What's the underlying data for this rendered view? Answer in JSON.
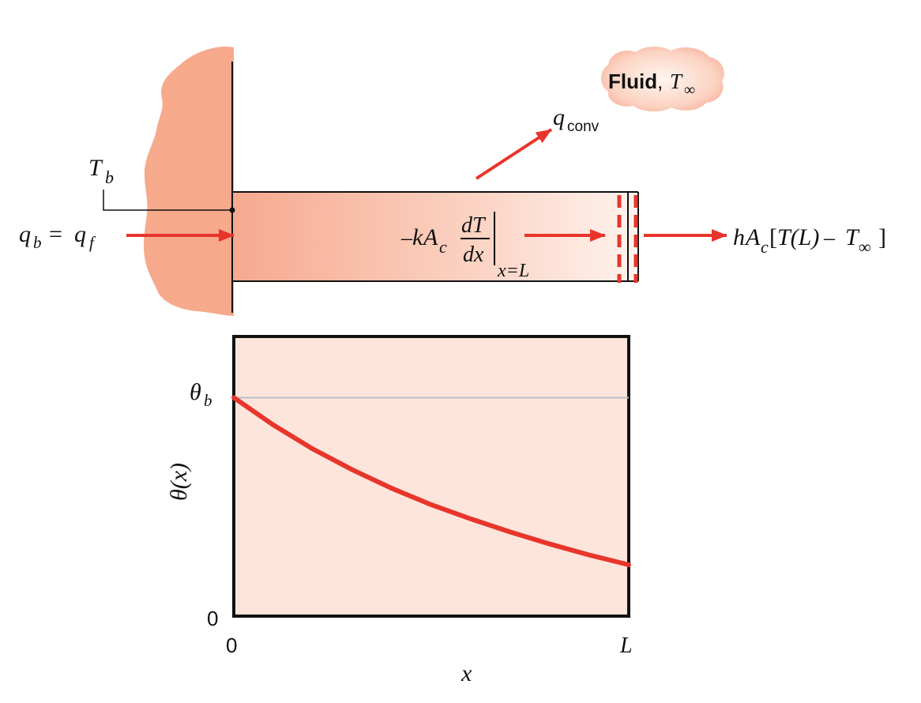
{
  "labels": {
    "fluid_word": "Fluid",
    "fluid_sep": ",",
    "T": "T",
    "inf": "∞",
    "q": "q",
    "conv": "conv",
    "b": "b",
    "f": "f",
    "eq": "=",
    "minus": "–",
    "k": "k",
    "A": "A",
    "c": "c",
    "h": "h",
    "dT": "dT",
    "dx": "dx",
    "x_eq_L": "x=L",
    "bracket_open": "[",
    "bracket_close": "]",
    "TL": "T(L)"
  },
  "plot": {
    "y_axis_label": "θ(x)",
    "theta": "θ",
    "theta_sub": "b",
    "y_zero": "0",
    "x_zero": "0",
    "x_end": "L",
    "x_axis_label": "x"
  },
  "chart_data": {
    "type": "line",
    "xlabel": "x",
    "ylabel": "θ(x)",
    "x_ticks": [
      "0",
      "L"
    ],
    "y_ticks": [
      "0",
      "θb"
    ],
    "reference_line": "θb",
    "series": [
      {
        "x": [
          0,
          0.1,
          0.2,
          0.3,
          0.4,
          0.5,
          0.6,
          0.7,
          0.8,
          0.9,
          1.0
        ],
        "y": [
          1.0,
          0.875,
          0.765,
          0.67,
          0.585,
          0.51,
          0.445,
          0.385,
          0.33,
          0.28,
          0.235
        ]
      }
    ],
    "xlim": [
      0,
      1
    ],
    "ylim": [
      0,
      1.28
    ]
  },
  "colors": {
    "accent_red": "#e8352b",
    "salmon": "#f7a98c",
    "plot_fill": "#fde5dc",
    "ref_line": "#b9c0c6"
  }
}
